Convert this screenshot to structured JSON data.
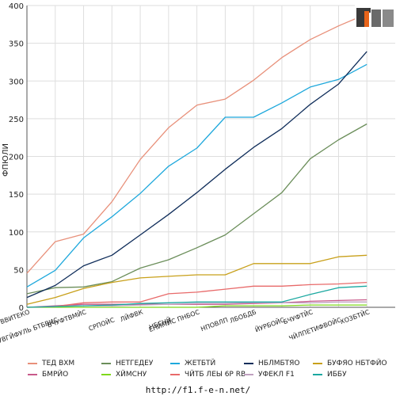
{
  "logo_text": "F1EN",
  "footer_url": "http://f1.f-e-n.net/",
  "chart_data": {
    "type": "line",
    "ylabel": "ФПЮЛИ",
    "ylim": [
      0,
      400
    ],
    "yticks": [
      0,
      50,
      100,
      150,
      200,
      250,
      300,
      350,
      400
    ],
    "grid": true,
    "legend_position": "bottom",
    "categories": [
      "ВВИТЕКО",
      "УВГЙФУЛЬ БТБВИС",
      "БЧУФТВМЙС",
      "СРПОЙС",
      "ЛЙФВК",
      "НБСНЙ",
      "ЕНЙМЙС ПНБОС",
      "НПОВЛП",
      "ЛБОБДБ",
      "ЙУРБОЙС",
      "БЧУФТЙС",
      "ЧЙЛПЕТИФВОЙС",
      "ХОЗБТЙС"
    ],
    "series": [
      {
        "name": "ТЕД ВХМ",
        "color": "#e8907a",
        "values": [
          45,
          87,
          97,
          140,
          196,
          238,
          268,
          276,
          301,
          331,
          355,
          373,
          389
        ]
      },
      {
        "name": "НЕТГЕДЕУ",
        "color": "#6b8e5a",
        "values": [
          18,
          26,
          27,
          34,
          52,
          63,
          79,
          96,
          124,
          152,
          197,
          222,
          243
        ]
      },
      {
        "name": "ЖЕТБТЙ",
        "color": "#1ea8dc",
        "values": [
          27,
          49,
          92,
          120,
          151,
          187,
          211,
          252,
          252,
          271,
          292,
          302,
          322
        ]
      },
      {
        "name": "НБЛМБТЯО",
        "color": "#0f2d5a",
        "values": [
          13,
          29,
          55,
          69,
          96,
          123,
          152,
          183,
          212,
          237,
          269,
          296,
          339
        ]
      },
      {
        "name": "БУФЯО НБТФЙО",
        "color": "#c8a01a",
        "values": [
          4,
          13,
          25,
          33,
          39,
          41,
          43,
          43,
          58,
          58,
          58,
          67,
          69
        ]
      },
      {
        "name": "БМРЙО",
        "color": "#c85a8a",
        "values": [
          0,
          2,
          4,
          4,
          4,
          4,
          4,
          4,
          5,
          6,
          8,
          9,
          10
        ]
      },
      {
        "name": "ХЙМСНУ",
        "color": "#7fd81a",
        "values": [
          0,
          0,
          0,
          0,
          0,
          0,
          0,
          2,
          2,
          2,
          3,
          3,
          3
        ]
      },
      {
        "name": "ЧЙТБ ЛЕЫ 6Р RB",
        "color": "#e86a6a",
        "values": [
          0,
          1,
          6,
          7,
          7,
          18,
          20,
          24,
          28,
          28,
          30,
          31,
          33
        ]
      },
      {
        "name": "УФЕКЛ F1",
        "color": "#c0a0c0",
        "values": [
          0,
          1,
          2,
          2,
          3,
          4,
          5,
          5,
          6,
          6,
          6,
          7,
          7
        ]
      },
      {
        "name": "ИББУ",
        "color": "#1aa8a0",
        "values": [
          0,
          1,
          2,
          3,
          5,
          6,
          7,
          7,
          7,
          7,
          17,
          26,
          28
        ]
      }
    ]
  }
}
